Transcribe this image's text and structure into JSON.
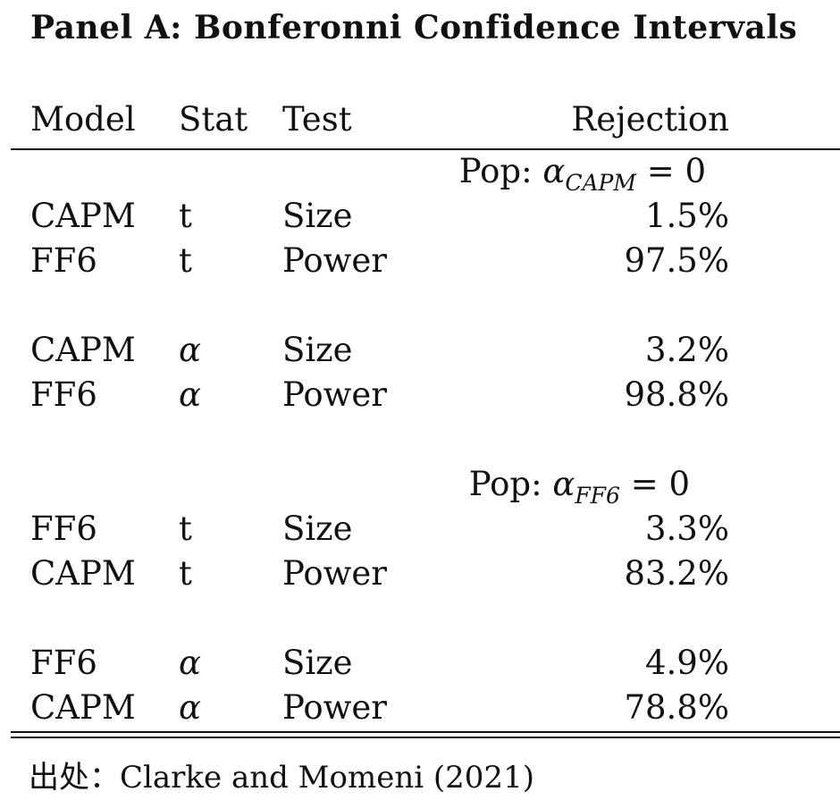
{
  "title": "Panel A: Bonferonni Confidence Intervals",
  "headers": {
    "model": "Model",
    "stat": "Stat",
    "test": "Test",
    "rejection": "Rejection"
  },
  "groups": [
    {
      "pop_prefix": "Pop:",
      "pop_alpha": "α",
      "pop_sub": "CAPM",
      "pop_eq": "= 0",
      "blocks": [
        [
          {
            "model": "CAPM",
            "stat": "t",
            "test": "Size",
            "rejection": "1.5%"
          },
          {
            "model": "FF6",
            "stat": "t",
            "test": "Power",
            "rejection": "97.5%"
          }
        ],
        [
          {
            "model": "CAPM",
            "stat": "α",
            "test": "Size",
            "rejection": "3.2%"
          },
          {
            "model": "FF6",
            "stat": "α",
            "test": "Power",
            "rejection": "98.8%"
          }
        ]
      ]
    },
    {
      "pop_prefix": "Pop:",
      "pop_alpha": "α",
      "pop_sub": "FF6",
      "pop_eq": "= 0",
      "blocks": [
        [
          {
            "model": "FF6",
            "stat": "t",
            "test": "Size",
            "rejection": "3.3%"
          },
          {
            "model": "CAPM",
            "stat": "t",
            "test": "Power",
            "rejection": "83.2%"
          }
        ],
        [
          {
            "model": "FF6",
            "stat": "α",
            "test": "Size",
            "rejection": "4.9%"
          },
          {
            "model": "CAPM",
            "stat": "α",
            "test": "Power",
            "rejection": "78.8%"
          }
        ]
      ]
    }
  ],
  "source": "出处：Clarke and Momeni (2021)"
}
